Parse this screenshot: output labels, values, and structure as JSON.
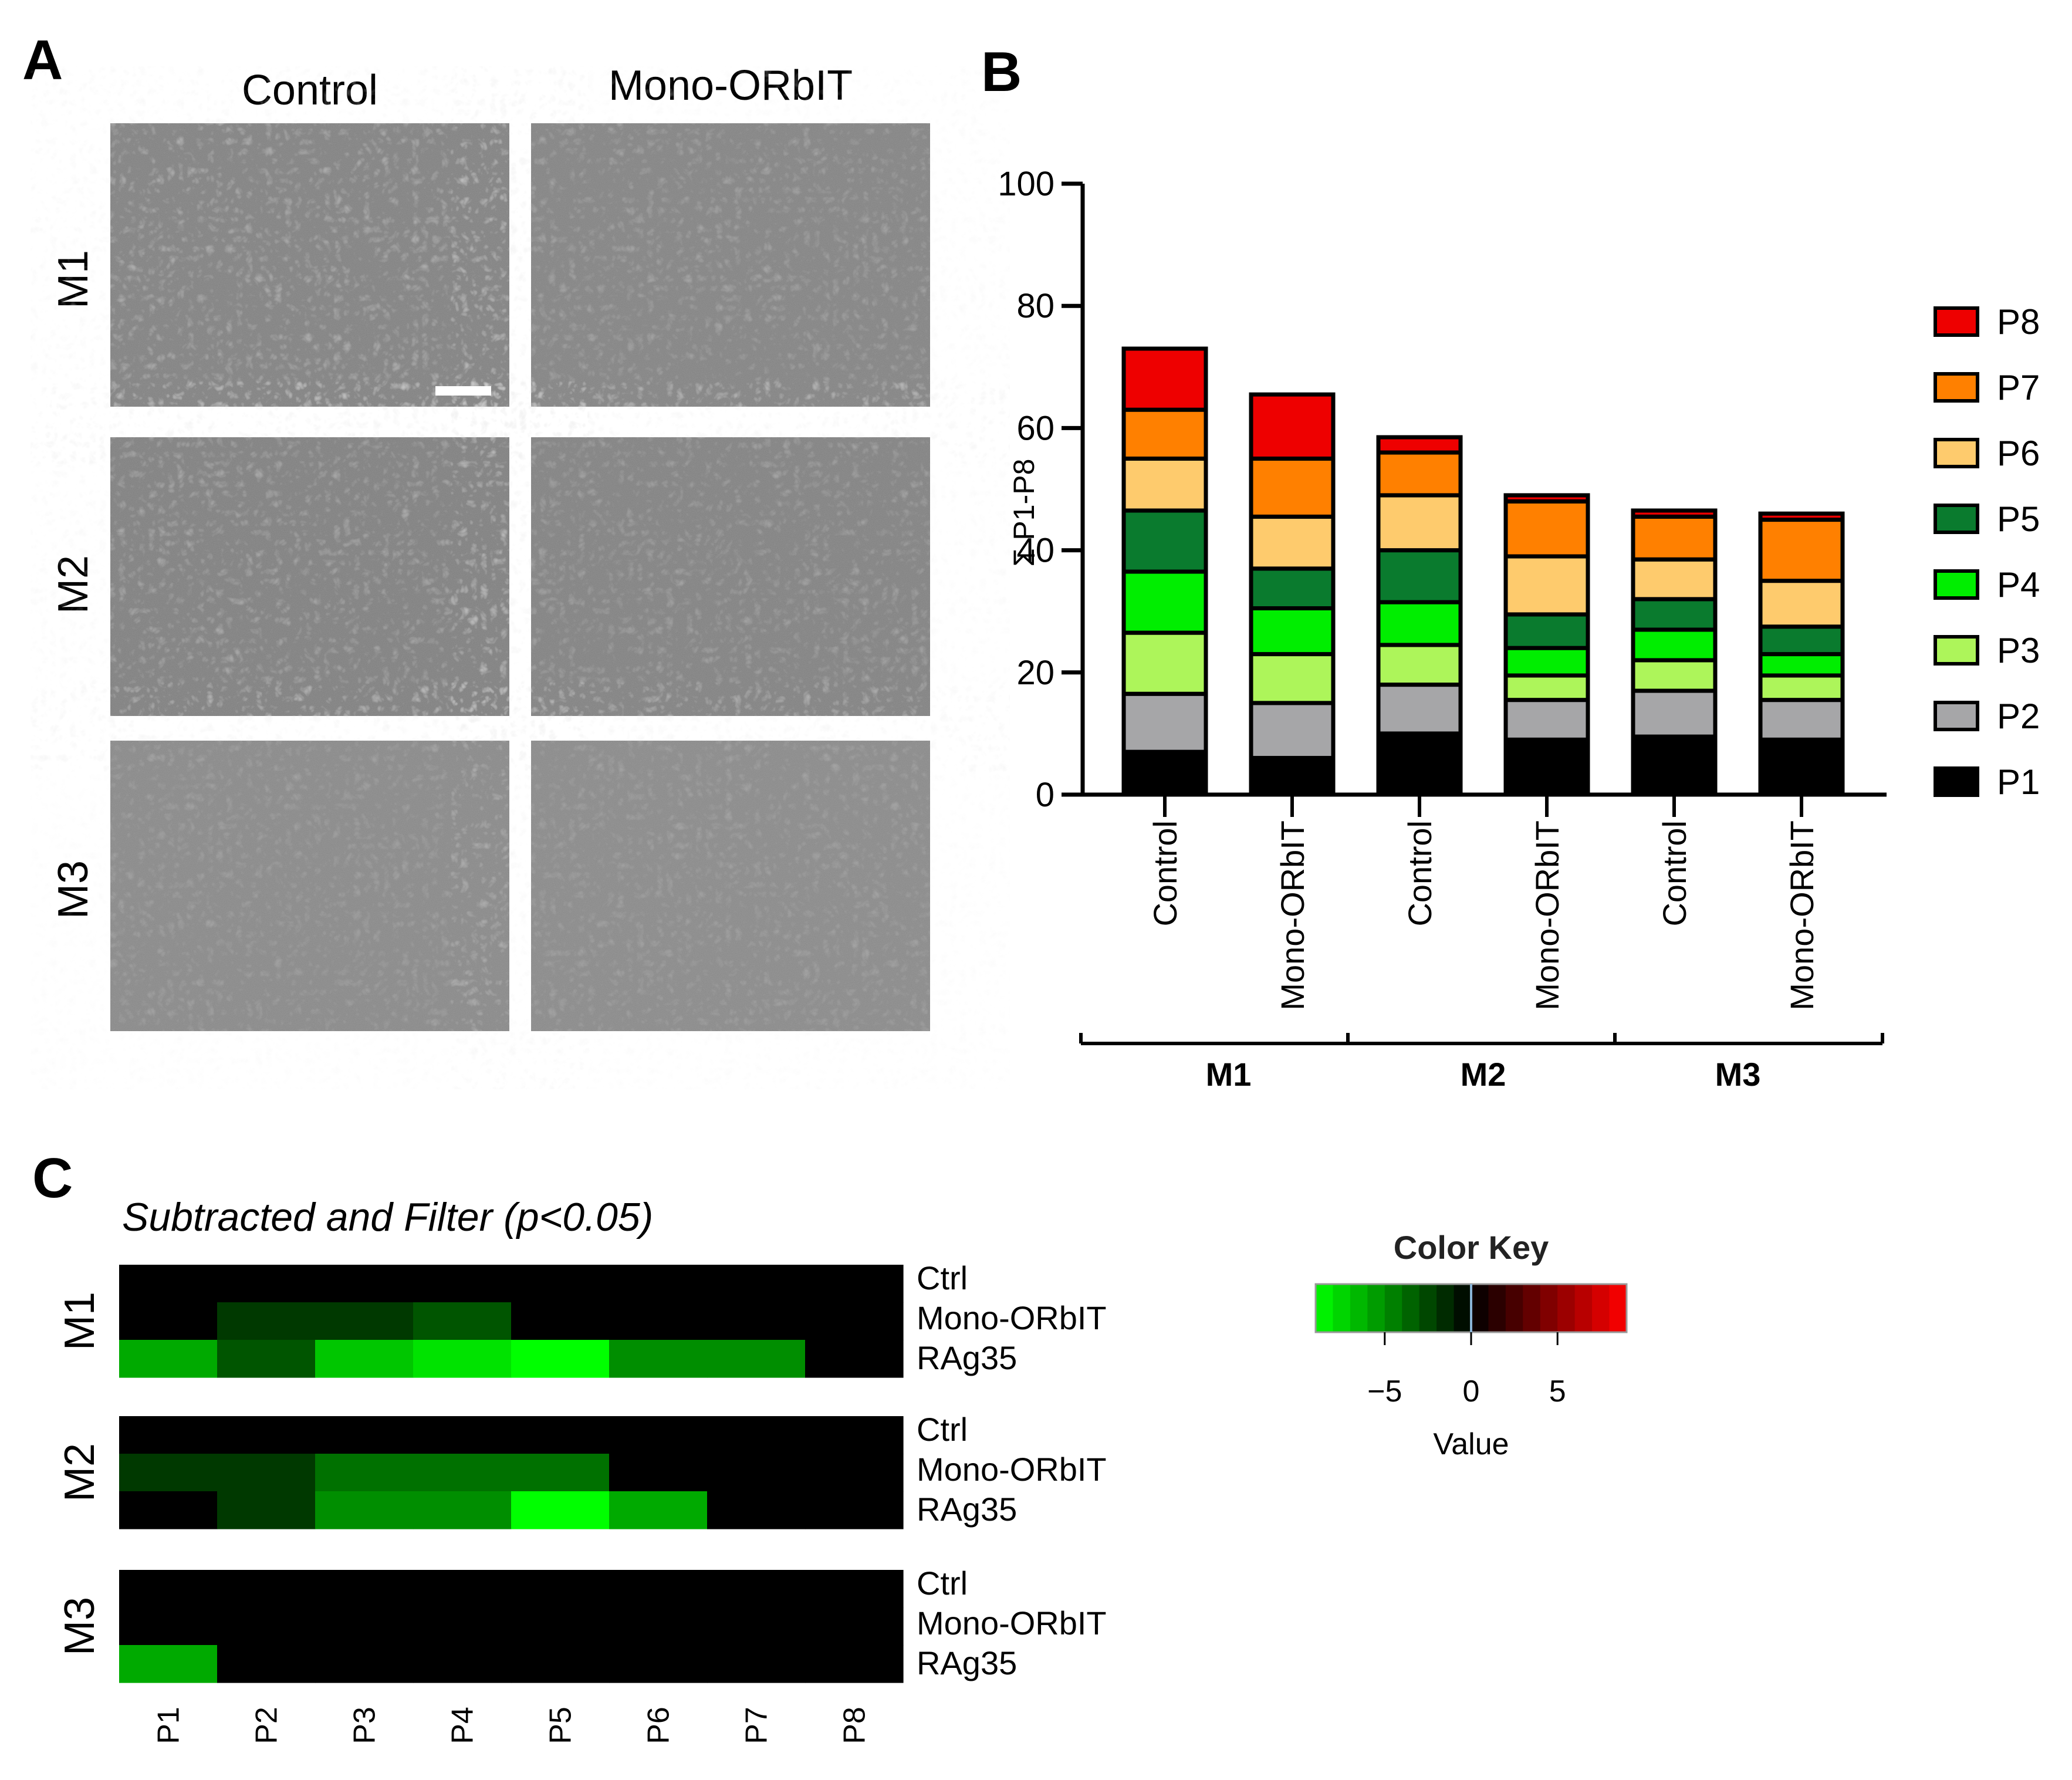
{
  "panels": {
    "a": {
      "letter": "A",
      "columns": [
        "Control",
        "Mono-ORbIT"
      ],
      "rows": [
        "M1",
        "M2",
        "M3"
      ]
    },
    "b": {
      "letter": "B"
    },
    "c": {
      "letter": "C",
      "title": "Subtracted and Filter (p<0.05)"
    }
  },
  "colors": {
    "P1": "#000000",
    "P2": "#a6a6a8",
    "P3": "#adf55a",
    "P4": "#00ee00",
    "P5": "#0a7b2e",
    "P6": "#fecb6d",
    "P7": "#ff8000",
    "P8": "#ee0000"
  },
  "chart_data": [
    {
      "type": "bar",
      "stacked": true,
      "ylabel": "Σ P1-P8",
      "ylim": [
        0,
        100
      ],
      "yticks": [
        0,
        20,
        40,
        60,
        80,
        100
      ],
      "categories": [
        "Control",
        "Mono-ORbIT",
        "Control",
        "Mono-ORbIT",
        "Control",
        "Mono-ORbIT"
      ],
      "groups": [
        {
          "name": "M1",
          "span": [
            0,
            1
          ]
        },
        {
          "name": "M2",
          "span": [
            2,
            3
          ]
        },
        {
          "name": "M3",
          "span": [
            4,
            5
          ]
        }
      ],
      "legend": {
        "position": "right",
        "order": [
          "P8",
          "P7",
          "P6",
          "P5",
          "P4",
          "P3",
          "P2",
          "P1"
        ]
      },
      "series": [
        {
          "name": "P1",
          "values": [
            7,
            6,
            10,
            9,
            9.5,
            9
          ]
        },
        {
          "name": "P2",
          "values": [
            9.5,
            9,
            8,
            6.5,
            7.5,
            6.5
          ]
        },
        {
          "name": "P3",
          "values": [
            10,
            8,
            6.5,
            4,
            5,
            4
          ]
        },
        {
          "name": "P4",
          "values": [
            10,
            7.5,
            7,
            4.5,
            5,
            3.5
          ]
        },
        {
          "name": "P5",
          "values": [
            10,
            6.5,
            8.5,
            5.5,
            5,
            4.5
          ]
        },
        {
          "name": "P6",
          "values": [
            8.5,
            8.5,
            9,
            9.5,
            6.5,
            7.5
          ]
        },
        {
          "name": "P7",
          "values": [
            8,
            9.5,
            7,
            9,
            7,
            10
          ]
        },
        {
          "name": "P8",
          "values": [
            10,
            10.5,
            2.5,
            1,
            1,
            1
          ]
        }
      ]
    },
    {
      "type": "heatmap",
      "title": "Subtracted and Filter (p<0.05)",
      "columns": [
        "P1",
        "P2",
        "P3",
        "P4",
        "P5",
        "P6",
        "P7",
        "P8"
      ],
      "row_labels": [
        "Ctrl",
        "Mono-ORbIT",
        "RAg35"
      ],
      "blocks": [
        {
          "name": "M1",
          "values": [
            [
              0,
              0,
              0,
              0,
              0,
              0,
              0,
              0
            ],
            [
              0,
              -2,
              -2,
              -3,
              0,
              0,
              0,
              0
            ],
            [
              -6,
              -3,
              -7,
              -8,
              -9,
              -5,
              -5,
              0
            ]
          ]
        },
        {
          "name": "M2",
          "values": [
            [
              0,
              0,
              0,
              0,
              0,
              0,
              0,
              0
            ],
            [
              -2,
              -2,
              -4,
              -4,
              -4,
              0,
              0,
              0
            ],
            [
              0,
              -2,
              -5,
              -5,
              -9,
              -6,
              0,
              0
            ]
          ]
        },
        {
          "name": "M3",
          "values": [
            [
              0,
              0,
              0,
              0,
              0,
              0,
              0,
              0
            ],
            [
              0,
              0,
              0,
              0,
              0,
              0,
              0,
              0
            ],
            [
              -6,
              0,
              0,
              0,
              0,
              0,
              0,
              0
            ]
          ]
        }
      ],
      "color_key": {
        "title": "Color Key",
        "xlabel": "Value",
        "ticks": [
          -5,
          0,
          5
        ],
        "tick_labels": [
          "−5",
          "0",
          "5"
        ],
        "range": [
          -9,
          9
        ]
      }
    }
  ]
}
